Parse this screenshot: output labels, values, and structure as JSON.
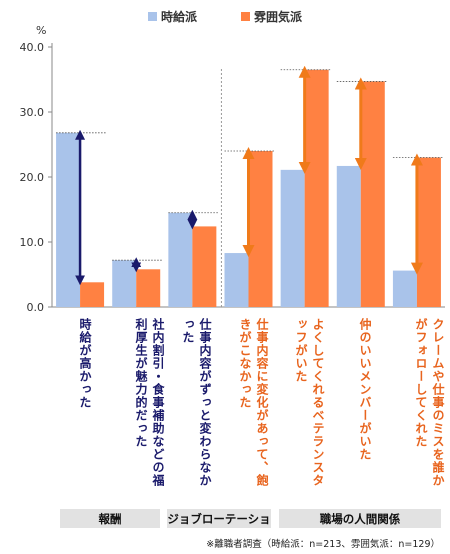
{
  "chart_data": {
    "type": "bar",
    "unit": "%",
    "ylim": [
      0,
      40
    ],
    "yticks": [
      "0.0",
      "10.0",
      "20.0",
      "30.0",
      "40.0"
    ],
    "categories": [
      "時給が高かった",
      "社内割引・食事補助などの福利厚生が魅力的だった",
      "仕事内容がずっと変わらなかった",
      "仕事内容に変化があって、飽きがこなかった",
      "よくしてくれるベテランスタッフがいた",
      "仲のいいメンバーがいた",
      "クレームや仕事のミスを誰かがフォローしてくれた"
    ],
    "series": [
      {
        "name": "時給派",
        "color": "#a9c3ea",
        "values": [
          26.8,
          7.2,
          14.5,
          8.3,
          21.1,
          21.7,
          5.6
        ]
      },
      {
        "name": "雰囲気派",
        "color": "#ff8142",
        "values": [
          3.8,
          5.8,
          12.4,
          24.0,
          36.5,
          34.7,
          23.0
        ]
      }
    ],
    "label_colors": [
      "#1a1a6b",
      "#1a1a6b",
      "#1a1a6b",
      "#e8641e",
      "#e8641e",
      "#e8641e",
      "#e8641e"
    ],
    "arrow_colors": [
      "#1a1a6b",
      "#1a1a6b",
      "#1a1a6b",
      "#f07a1a",
      "#f07a1a",
      "#f07a1a",
      "#f07a1a"
    ],
    "groups": [
      {
        "label": "報酬"
      },
      {
        "label": "ジョブローテーショ"
      },
      {
        "label": "職場の人間関係"
      }
    ],
    "footnote": "※離職者調査（時給派：n=213、雰囲気派：n=129）"
  }
}
